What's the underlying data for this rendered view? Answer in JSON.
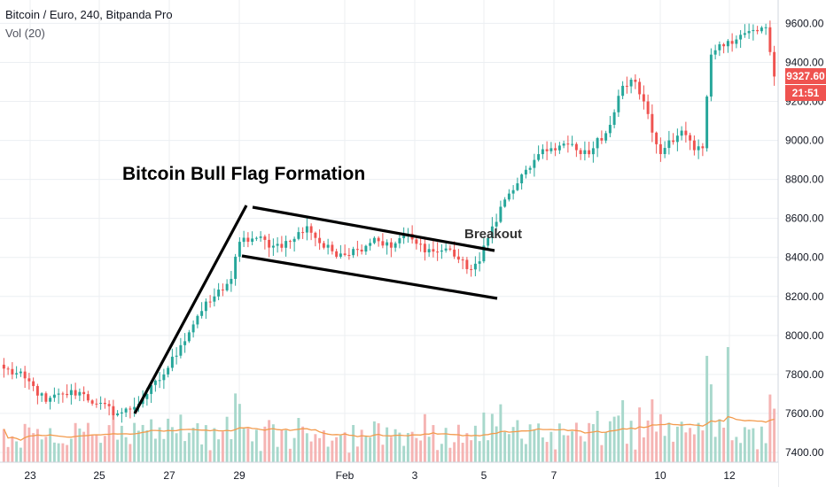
{
  "header": {
    "symbol_line": "Bitcoin / Euro, 240, Bitpanda Pro",
    "volume_line": "Vol (20)"
  },
  "annotations": {
    "title": "Bitcoin Bull Flag Formation",
    "breakout": "Breakout"
  },
  "price_tag": {
    "price": "9327.60",
    "countdown": "21:51"
  },
  "colors": {
    "up": "#26a69a",
    "down": "#ef5350",
    "up_volume": "#a8d8cc",
    "down_volume": "#f5b4b3",
    "volume_ma": "#f39a4c",
    "grid": "#eceff2",
    "annotation_line": "#000000"
  },
  "chart_data": {
    "type": "candlestick",
    "x_tick_labels": [
      "23",
      "25",
      "27",
      "29",
      "Feb",
      "3",
      "5",
      "7",
      "10",
      "12"
    ],
    "y_tick_labels": [
      "9600.00",
      "9400.00",
      "9200.00",
      "9000.00",
      "8800.00",
      "8600.00",
      "8400.00",
      "8200.00",
      "8000.00",
      "7800.00",
      "7600.00",
      "7400.00"
    ],
    "ylim": [
      7350,
      9720
    ],
    "grid": true,
    "last_price": 9327.6,
    "waypoints": [
      [
        0,
        7830
      ],
      [
        5,
        7780
      ],
      [
        10,
        7660
      ],
      [
        14,
        7700
      ],
      [
        18,
        7710
      ],
      [
        22,
        7650
      ],
      [
        27,
        7600
      ],
      [
        30,
        7620
      ],
      [
        34,
        7700
      ],
      [
        38,
        7800
      ],
      [
        42,
        7950
      ],
      [
        46,
        8100
      ],
      [
        50,
        8200
      ],
      [
        54,
        8290
      ],
      [
        56,
        8480
      ],
      [
        60,
        8500
      ],
      [
        64,
        8460
      ],
      [
        68,
        8480
      ],
      [
        72,
        8560
      ],
      [
        76,
        8450
      ],
      [
        80,
        8420
      ],
      [
        84,
        8440
      ],
      [
        88,
        8500
      ],
      [
        92,
        8450
      ],
      [
        95,
        8520
      ],
      [
        98,
        8470
      ],
      [
        102,
        8430
      ],
      [
        106,
        8440
      ],
      [
        110,
        8340
      ],
      [
        113,
        8380
      ],
      [
        115,
        8500
      ],
      [
        118,
        8660
      ],
      [
        122,
        8780
      ],
      [
        126,
        8900
      ],
      [
        130,
        8960
      ],
      [
        134,
        8980
      ],
      [
        137,
        8930
      ],
      [
        140,
        8960
      ],
      [
        144,
        9080
      ],
      [
        147,
        9280
      ],
      [
        150,
        9300
      ],
      [
        152,
        9200
      ],
      [
        154,
        9040
      ],
      [
        156,
        8930
      ],
      [
        158,
        9000
      ],
      [
        161,
        9050
      ],
      [
        164,
        8950
      ],
      [
        166,
        8960
      ],
      [
        168,
        9440
      ],
      [
        172,
        9510
      ],
      [
        176,
        9550
      ],
      [
        179,
        9560
      ],
      [
        181,
        9580
      ],
      [
        183,
        9327.6
      ]
    ]
  }
}
